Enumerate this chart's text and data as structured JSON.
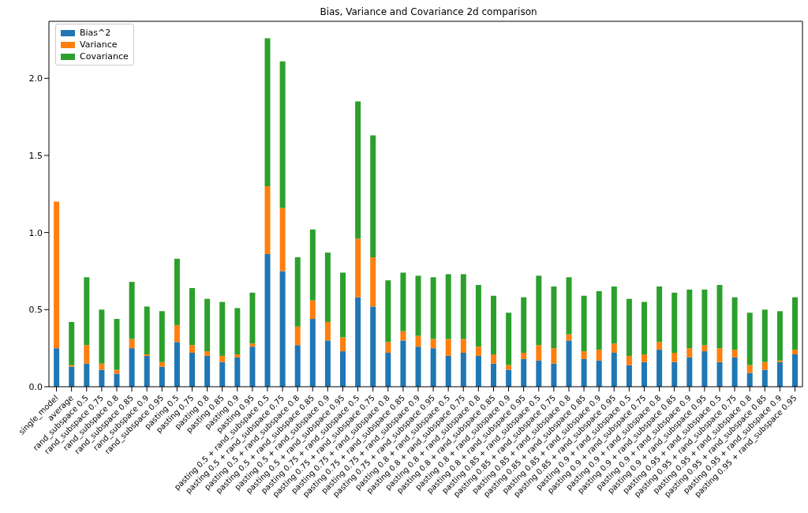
{
  "chart_data": {
    "type": "bar",
    "title": "Bias, Variance and Covariance 2d comparison",
    "stacked": true,
    "legend": "top left",
    "grid": false,
    "categories": [
      "single_model",
      "average",
      "rand_subspace 0.5",
      "rand_subspace 0.75",
      "rand_subspace 0.8",
      "rand_subspace 0.85",
      "rand_subspace 0.9",
      "rand_subspace 0.95",
      "pasting 0.5",
      "pasting 0.75",
      "pasting 0.8",
      "pasting 0.85",
      "pasting 0.9",
      "pasting 0.95",
      "pasting 0.5 + rand_subspace 0.5",
      "pasting 0.5 + rand_subspace 0.75",
      "pasting 0.5 + rand_subspace 0.8",
      "pasting 0.5 + rand_subspace 0.85",
      "pasting 0.5 + rand_subspace 0.9",
      "pasting 0.5 + rand_subspace 0.95",
      "pasting 0.75 + rand_subspace 0.5",
      "pasting 0.75 + rand_subspace 0.75",
      "pasting 0.75 + rand_subspace 0.8",
      "pasting 0.75 + rand_subspace 0.85",
      "pasting 0.75 + rand_subspace 0.9",
      "pasting 0.75 + rand_subspace 0.95",
      "pasting 0.8 + rand_subspace 0.5",
      "pasting 0.8 + rand_subspace 0.75",
      "pasting 0.8 + rand_subspace 0.8",
      "pasting 0.8 + rand_subspace 0.85",
      "pasting 0.8 + rand_subspace 0.9",
      "pasting 0.8 + rand_subspace 0.95",
      "pasting 0.85 + rand_subspace 0.5",
      "pasting 0.85 + rand_subspace 0.75",
      "pasting 0.85 + rand_subspace 0.8",
      "pasting 0.85 + rand_subspace 0.85",
      "pasting 0.85 + rand_subspace 0.9",
      "pasting 0.85 + rand_subspace 0.95",
      "pasting 0.9 + rand_subspace 0.5",
      "pasting 0.9 + rand_subspace 0.75",
      "pasting 0.9 + rand_subspace 0.8",
      "pasting 0.9 + rand_subspace 0.85",
      "pasting 0.9 + rand_subspace 0.9",
      "pasting 0.9 + rand_subspace 0.95",
      "pasting 0.95 + rand_subspace 0.5",
      "pasting 0.95 + rand_subspace 0.75",
      "pasting 0.95 + rand_subspace 0.8",
      "pasting 0.95 + rand_subspace 0.85",
      "pasting 0.95 + rand_subspace 0.9",
      "pasting 0.95 + rand_subspace 0.95"
    ],
    "series": [
      {
        "name": "Bias^2",
        "color": "#1f77b4",
        "values": [
          0.25,
          0.13,
          0.15,
          0.11,
          0.085,
          0.25,
          0.2,
          0.13,
          0.29,
          0.22,
          0.2,
          0.16,
          0.19,
          0.26,
          0.86,
          0.75,
          0.27,
          0.44,
          0.3,
          0.23,
          0.58,
          0.52,
          0.22,
          0.3,
          0.26,
          0.25,
          0.2,
          0.22,
          0.2,
          0.15,
          0.11,
          0.18,
          0.17,
          0.15,
          0.3,
          0.18,
          0.17,
          0.22,
          0.14,
          0.16,
          0.24,
          0.16,
          0.19,
          0.23,
          0.16,
          0.19,
          0.09,
          0.11,
          0.16,
          0.21
        ]
      },
      {
        "name": "Variance",
        "color": "#ff7f0e",
        "values": [
          0.95,
          0.01,
          0.12,
          0.04,
          0.025,
          0.06,
          0.01,
          0.03,
          0.11,
          0.05,
          0.03,
          0.04,
          0.02,
          0.02,
          0.44,
          0.41,
          0.12,
          0.12,
          0.12,
          0.09,
          0.38,
          0.32,
          0.07,
          0.06,
          0.07,
          0.06,
          0.11,
          0.09,
          0.06,
          0.06,
          0.03,
          0.04,
          0.1,
          0.1,
          0.04,
          0.05,
          0.07,
          0.06,
          0.06,
          0.05,
          0.05,
          0.06,
          0.06,
          0.04,
          0.09,
          0.05,
          0.05,
          0.05,
          0.01,
          0.03
        ]
      },
      {
        "name": "Covariance",
        "color": "#2ca02c",
        "values": [
          0,
          0.28,
          0.44,
          0.35,
          0.33,
          0.37,
          0.31,
          0.33,
          0.43,
          0.37,
          0.34,
          0.35,
          0.3,
          0.33,
          0.96,
          0.95,
          0.45,
          0.46,
          0.45,
          0.42,
          0.89,
          0.79,
          0.4,
          0.38,
          0.39,
          0.4,
          0.42,
          0.42,
          0.4,
          0.38,
          0.34,
          0.36,
          0.45,
          0.4,
          0.37,
          0.36,
          0.38,
          0.37,
          0.37,
          0.34,
          0.36,
          0.39,
          0.38,
          0.36,
          0.41,
          0.34,
          0.34,
          0.34,
          0.32,
          0.34
        ]
      }
    ],
    "ylim": [
      0,
      2.37
    ],
    "yticks": [
      {
        "value": 0,
        "label": "0.0"
      },
      {
        "value": 0.5,
        "label": "0.5"
      },
      {
        "value": 1,
        "label": "1.0"
      },
      {
        "value": 1.5,
        "label": "1.5"
      },
      {
        "value": 2,
        "label": "2.0"
      }
    ]
  }
}
